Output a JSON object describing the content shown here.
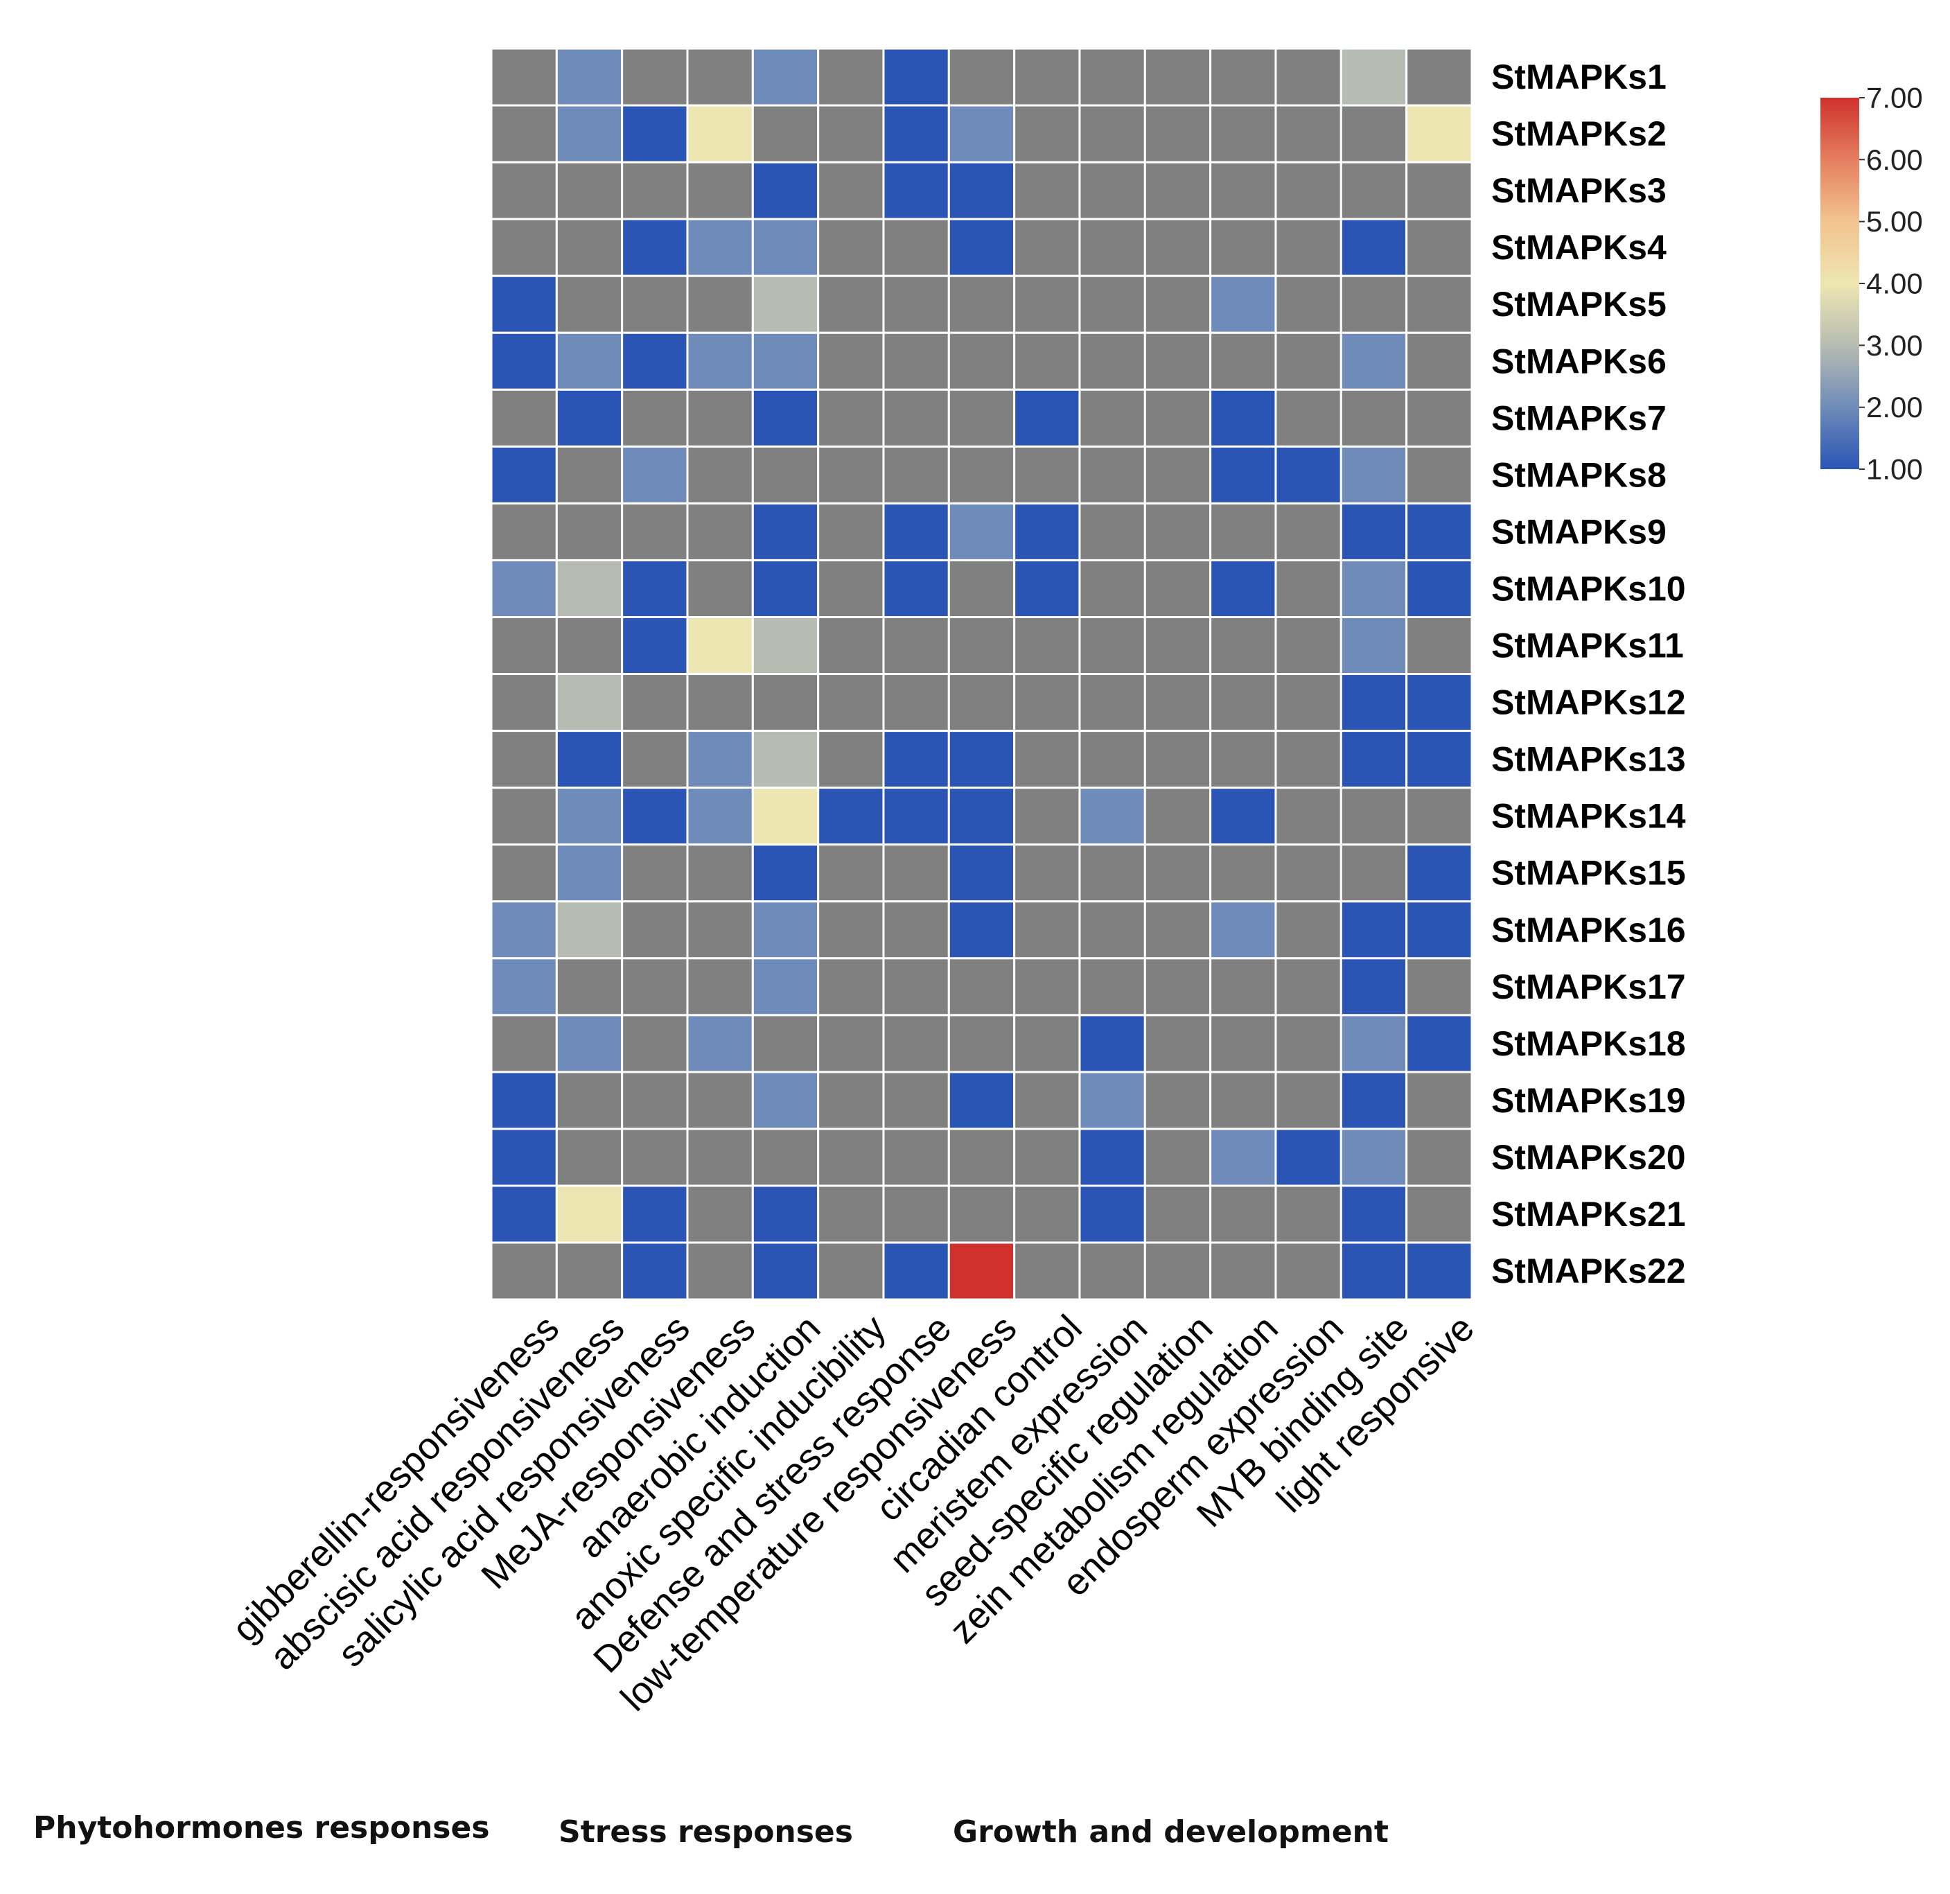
{
  "chart_data": {
    "type": "heatmap",
    "rows": [
      "StMAPKs1",
      "StMAPKs2",
      "StMAPKs3",
      "StMAPKs4",
      "StMAPKs5",
      "StMAPKs6",
      "StMAPKs7",
      "StMAPKs8",
      "StMAPKs9",
      "StMAPKs10",
      "StMAPKs11",
      "StMAPKs12",
      "StMAPKs13",
      "StMAPKs14",
      "StMAPKs15",
      "StMAPKs16",
      "StMAPKs17",
      "StMAPKs18",
      "StMAPKs19",
      "StMAPKs20",
      "StMAPKs21",
      "StMAPKs22"
    ],
    "columns": [
      "gibberellin-responsiveness",
      "abscisic acid responsiveness",
      "salicylic acid responsiveness",
      "MeJA-responsiveness",
      "anaerobic induction",
      "anoxic specific inducibility",
      "Defense and stress response",
      "low-temperature responsiveness",
      "circadian control",
      "meristem expression",
      "seed-specific regulation",
      "zein metabolism regulation",
      "endosperm expression",
      "MYB binding site",
      "light responsive"
    ],
    "values": [
      [
        null,
        2,
        null,
        null,
        2,
        null,
        1,
        null,
        null,
        null,
        null,
        null,
        null,
        3,
        null
      ],
      [
        null,
        2,
        1,
        4,
        null,
        null,
        1,
        2,
        null,
        null,
        null,
        null,
        null,
        null,
        4
      ],
      [
        null,
        null,
        null,
        null,
        1,
        null,
        1,
        1,
        null,
        null,
        null,
        null,
        null,
        null,
        null
      ],
      [
        null,
        null,
        1,
        2,
        2,
        null,
        null,
        1,
        null,
        null,
        null,
        null,
        null,
        1,
        null
      ],
      [
        1,
        null,
        null,
        null,
        3,
        null,
        null,
        null,
        null,
        null,
        null,
        2,
        null,
        null,
        null
      ],
      [
        1,
        2,
        1,
        2,
        2,
        null,
        null,
        null,
        null,
        null,
        null,
        null,
        null,
        2,
        null
      ],
      [
        null,
        1,
        null,
        null,
        1,
        null,
        null,
        null,
        1,
        null,
        null,
        1,
        null,
        null,
        null
      ],
      [
        1,
        null,
        2,
        null,
        null,
        null,
        null,
        null,
        null,
        null,
        null,
        1,
        1,
        2,
        null
      ],
      [
        null,
        null,
        null,
        null,
        1,
        null,
        1,
        2,
        1,
        null,
        null,
        null,
        null,
        1,
        1
      ],
      [
        2,
        3,
        1,
        null,
        1,
        null,
        1,
        null,
        1,
        null,
        null,
        1,
        null,
        2,
        1
      ],
      [
        null,
        null,
        1,
        4,
        3,
        null,
        null,
        null,
        null,
        null,
        null,
        null,
        null,
        2,
        null
      ],
      [
        null,
        3,
        null,
        null,
        null,
        null,
        null,
        null,
        null,
        null,
        null,
        null,
        null,
        1,
        1
      ],
      [
        null,
        1,
        null,
        2,
        3,
        null,
        1,
        1,
        null,
        null,
        null,
        null,
        null,
        1,
        1
      ],
      [
        null,
        2,
        1,
        2,
        4,
        1,
        1,
        1,
        null,
        2,
        null,
        1,
        null,
        null,
        null
      ],
      [
        null,
        2,
        null,
        null,
        1,
        null,
        null,
        1,
        null,
        null,
        null,
        null,
        null,
        null,
        1
      ],
      [
        2,
        3,
        null,
        null,
        2,
        null,
        null,
        1,
        null,
        null,
        null,
        2,
        null,
        1,
        1
      ],
      [
        2,
        null,
        null,
        null,
        2,
        null,
        null,
        null,
        null,
        null,
        null,
        null,
        null,
        1,
        null
      ],
      [
        null,
        2,
        null,
        2,
        null,
        null,
        null,
        null,
        null,
        1,
        null,
        null,
        null,
        2,
        1
      ],
      [
        1,
        null,
        null,
        null,
        2,
        null,
        null,
        1,
        null,
        2,
        null,
        null,
        null,
        1,
        null
      ],
      [
        1,
        null,
        null,
        null,
        null,
        null,
        null,
        null,
        null,
        1,
        null,
        2,
        1,
        2,
        null
      ],
      [
        1,
        4,
        1,
        null,
        1,
        null,
        null,
        null,
        null,
        1,
        null,
        null,
        null,
        1,
        null
      ],
      [
        null,
        null,
        1,
        null,
        1,
        null,
        1,
        7,
        null,
        null,
        null,
        null,
        null,
        1,
        1
      ]
    ],
    "colorbar": {
      "min": 1.0,
      "max": 7.0,
      "ticks": [
        "1.00",
        "2.00",
        "3.00",
        "4.00",
        "5.00",
        "6.00",
        "7.00"
      ]
    },
    "colors": {
      "missing": "#808080",
      "1": "#2b55b5",
      "2": "#6f8bb9",
      "3": "#b6bcb1",
      "4": "#eee6b2",
      "7": "#d0312d",
      "grid": "#ffffff"
    },
    "groups": [
      "Phytohormones responses",
      "Stress responses",
      "Growth and development"
    ]
  }
}
